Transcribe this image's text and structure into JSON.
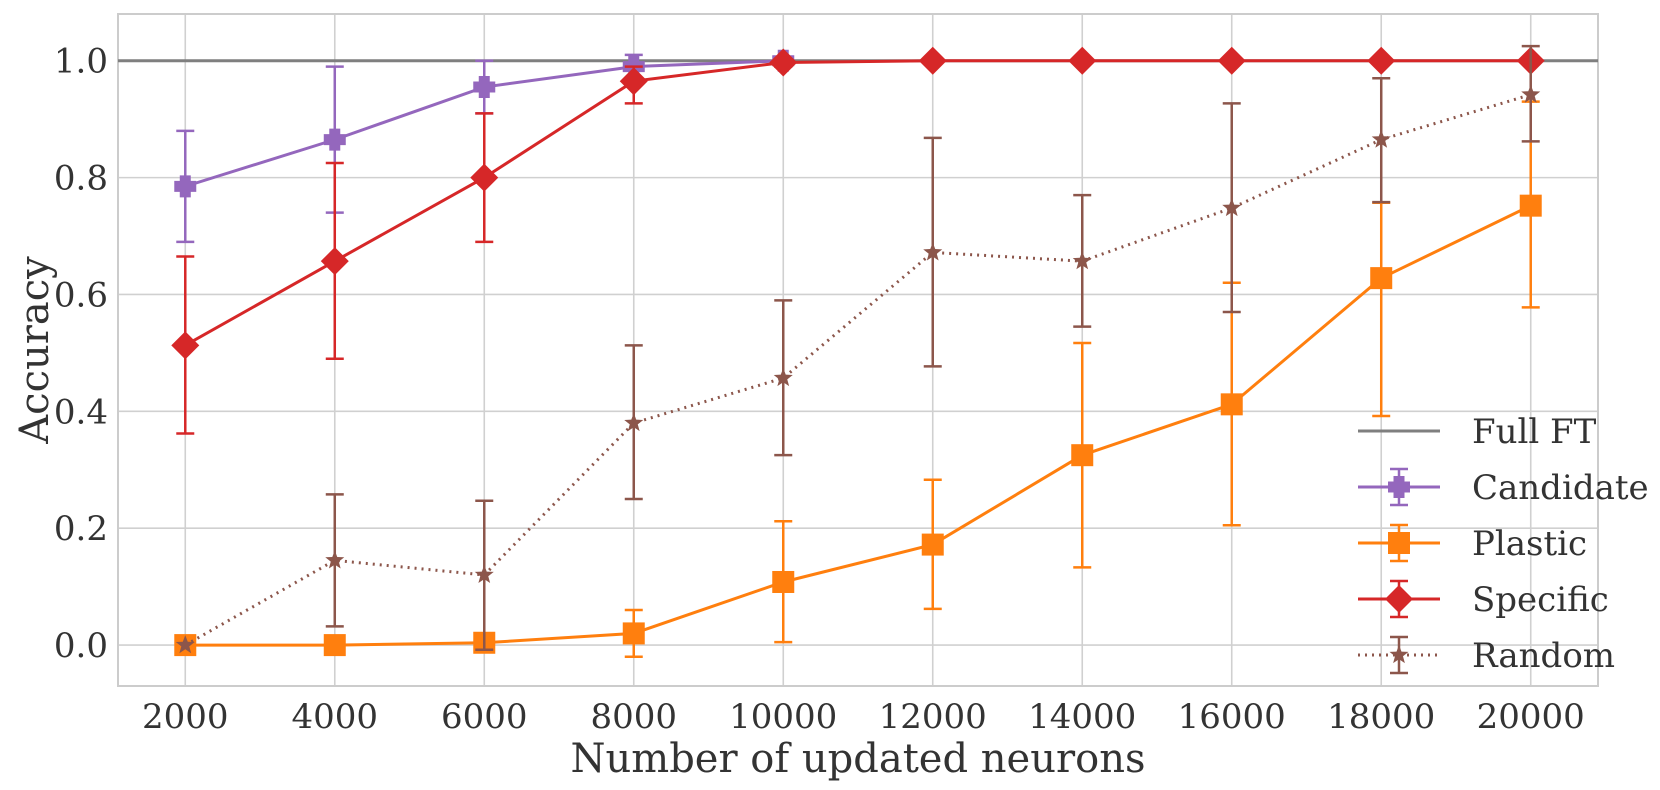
{
  "chart_data": {
    "type": "line",
    "title": "",
    "xlabel": "Number of updated neurons",
    "ylabel": "Accuracy",
    "x": [
      2000,
      4000,
      6000,
      8000,
      10000,
      12000,
      14000,
      16000,
      18000,
      20000
    ],
    "xlim": [
      1100,
      20900
    ],
    "ylim": [
      -0.07,
      1.08
    ],
    "yticks": [
      0.0,
      0.2,
      0.4,
      0.6,
      0.8,
      1.0
    ],
    "ytick_labels": [
      "0.0",
      "0.2",
      "0.4",
      "0.6",
      "0.8",
      "1.0"
    ],
    "xtick_labels": [
      "2000",
      "4000",
      "6000",
      "8000",
      "10000",
      "12000",
      "14000",
      "16000",
      "18000",
      "20000"
    ],
    "grid": true,
    "legend_position": "bottom-right",
    "reference_lines": [
      {
        "name": "Full FT",
        "y": 1.0,
        "color": "#7f7f7f"
      }
    ],
    "series": [
      {
        "name": "Candidate",
        "color": "#9467bd",
        "marker": "plus",
        "dash": "solid",
        "x": [
          2000,
          4000,
          6000,
          8000,
          10000
        ],
        "y": [
          0.785,
          0.865,
          0.955,
          0.99,
          1.0
        ],
        "err_low": [
          0.69,
          0.74,
          0.91,
          0.97,
          1.0
        ],
        "err_high": [
          0.88,
          0.99,
          1.0,
          1.01,
          1.0
        ]
      },
      {
        "name": "Plastic",
        "color": "#ff7f0e",
        "marker": "square",
        "dash": "solid",
        "x": [
          2000,
          4000,
          6000,
          8000,
          10000,
          12000,
          14000,
          16000,
          18000,
          20000
        ],
        "y": [
          0.0,
          0.0,
          0.004,
          0.02,
          0.108,
          0.172,
          0.325,
          0.412,
          0.628,
          0.752
        ],
        "err_low": [
          0.0,
          0.0,
          0.0,
          -0.02,
          0.005,
          0.062,
          0.133,
          0.205,
          0.392,
          0.578
        ],
        "err_high": [
          0.0,
          0.0,
          0.01,
          0.06,
          0.212,
          0.283,
          0.517,
          0.62,
          0.757,
          0.93
        ]
      },
      {
        "name": "Specific",
        "color": "#d62728",
        "marker": "diamond",
        "dash": "solid",
        "x": [
          2000,
          4000,
          6000,
          8000,
          10000,
          12000,
          14000,
          16000,
          18000,
          20000
        ],
        "y": [
          0.513,
          0.657,
          0.8,
          0.965,
          0.997,
          1.0,
          1.0,
          1.0,
          1.0,
          1.0
        ],
        "err_low": [
          0.362,
          0.49,
          0.69,
          0.927,
          0.99,
          1.0,
          1.0,
          1.0,
          1.0,
          1.0
        ],
        "err_high": [
          0.665,
          0.825,
          0.91,
          0.99,
          1.0,
          1.0,
          1.0,
          1.0,
          1.0,
          1.0
        ]
      },
      {
        "name": "Random",
        "color": "#8c564b",
        "marker": "star",
        "dash": "dotted",
        "x": [
          2000,
          4000,
          6000,
          8000,
          10000,
          12000,
          14000,
          16000,
          18000,
          20000
        ],
        "y": [
          0.0,
          0.145,
          0.12,
          0.38,
          0.457,
          0.672,
          0.657,
          0.748,
          0.865,
          0.942
        ],
        "err_low": [
          0.0,
          0.032,
          -0.008,
          0.25,
          0.325,
          0.477,
          0.545,
          0.57,
          0.758,
          0.862
        ],
        "err_high": [
          0.0,
          0.258,
          0.247,
          0.513,
          0.59,
          0.868,
          0.77,
          0.927,
          0.97,
          1.025
        ]
      }
    ]
  }
}
